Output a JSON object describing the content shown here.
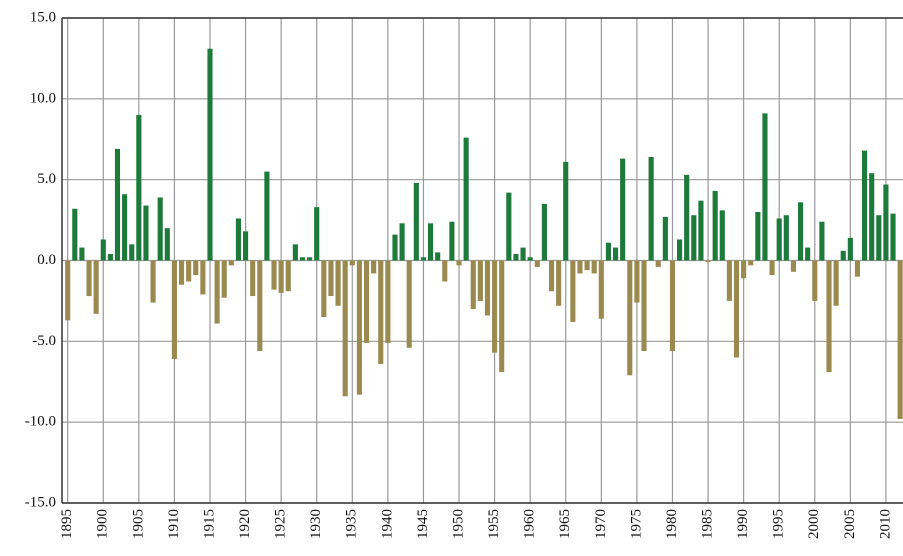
{
  "chart_data": {
    "type": "bar",
    "x": [
      1895,
      1896,
      1897,
      1898,
      1899,
      1900,
      1901,
      1902,
      1903,
      1904,
      1905,
      1906,
      1907,
      1908,
      1909,
      1910,
      1911,
      1912,
      1913,
      1914,
      1915,
      1916,
      1917,
      1918,
      1919,
      1920,
      1921,
      1922,
      1923,
      1924,
      1925,
      1926,
      1927,
      1928,
      1929,
      1930,
      1931,
      1932,
      1933,
      1934,
      1935,
      1936,
      1937,
      1938,
      1939,
      1940,
      1941,
      1942,
      1943,
      1944,
      1945,
      1946,
      1947,
      1948,
      1949,
      1950,
      1951,
      1952,
      1953,
      1954,
      1955,
      1956,
      1957,
      1958,
      1959,
      1960,
      1961,
      1962,
      1963,
      1964,
      1965,
      1966,
      1967,
      1968,
      1969,
      1970,
      1971,
      1972,
      1973,
      1974,
      1975,
      1976,
      1977,
      1978,
      1979,
      1980,
      1981,
      1982,
      1983,
      1984,
      1985,
      1986,
      1987,
      1988,
      1989,
      1990,
      1991,
      1992,
      1993,
      1994,
      1995,
      1996,
      1997,
      1998,
      1999,
      2000,
      2001,
      2002,
      2003,
      2004,
      2005,
      2006,
      2007,
      2008,
      2009,
      2010,
      2011,
      2012
    ],
    "values": [
      -3.7,
      3.2,
      0.8,
      -2.2,
      -3.3,
      1.3,
      0.4,
      6.9,
      4.1,
      1.0,
      9.0,
      3.4,
      -2.6,
      3.9,
      2.0,
      -6.1,
      -1.5,
      -1.3,
      -0.9,
      -2.1,
      13.1,
      -3.9,
      -2.3,
      -0.3,
      2.6,
      1.8,
      -2.2,
      -5.6,
      5.5,
      -1.8,
      -2.0,
      -1.9,
      1.0,
      0.2,
      0.2,
      3.3,
      -3.5,
      -2.2,
      -2.8,
      -8.4,
      -0.3,
      -8.3,
      -5.1,
      -0.8,
      -6.4,
      -5.1,
      1.6,
      2.3,
      -5.4,
      4.8,
      0.2,
      2.3,
      0.5,
      -1.3,
      2.4,
      -0.3,
      7.6,
      -3.0,
      -2.5,
      -3.4,
      -5.7,
      -6.9,
      4.2,
      0.4,
      0.8,
      0.2,
      -0.4,
      3.5,
      -1.9,
      -2.8,
      6.1,
      -3.8,
      -0.8,
      -0.6,
      -0.8,
      -3.6,
      1.1,
      0.8,
      6.3,
      -7.1,
      -2.6,
      -5.6,
      6.4,
      -0.4,
      2.7,
      -5.6,
      1.3,
      5.3,
      2.8,
      3.7,
      -0.1,
      4.3,
      3.1,
      -2.5,
      -6.0,
      -1.1,
      -0.3,
      3.0,
      9.1,
      -0.9,
      2.6,
      2.8,
      -0.7,
      3.6,
      0.8,
      -2.5,
      2.4,
      -6.9,
      -2.8,
      0.6,
      1.4,
      -1.0,
      6.8,
      5.4,
      2.8,
      4.7,
      2.9,
      -9.8
    ],
    "positive_color": "#1d7a3a",
    "negative_color": "#9b8a50",
    "xlim": [
      1894.2,
      2012.4
    ],
    "xticks": [
      1895,
      1900,
      1905,
      1910,
      1915,
      1920,
      1925,
      1930,
      1935,
      1940,
      1945,
      1950,
      1955,
      1960,
      1965,
      1970,
      1975,
      1980,
      1985,
      1990,
      1995,
      2000,
      2005,
      2010
    ],
    "ylim": [
      -15,
      15
    ],
    "yticks": [
      {
        "value": -15,
        "label": "-15.0"
      },
      {
        "value": -10,
        "label": "-10.0"
      },
      {
        "value": -5,
        "label": "-5.0"
      },
      {
        "value": 0,
        "label": "0.0"
      },
      {
        "value": 5,
        "label": "5.0"
      },
      {
        "value": 10,
        "label": "10.0"
      },
      {
        "value": 15,
        "label": "15.0"
      }
    ],
    "grid": true
  }
}
